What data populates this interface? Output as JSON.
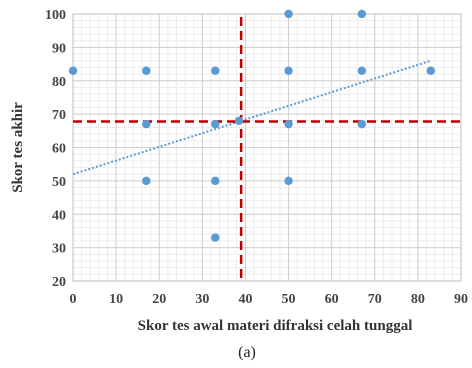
{
  "chart_data": {
    "type": "scatter",
    "xlabel": "Skor tes awal materi difraksi celah tunggal",
    "ylabel": "Skor tes akhir",
    "caption": "(a)",
    "xlim": [
      0,
      90
    ],
    "ylim": [
      20,
      100
    ],
    "x_ticks": [
      0,
      10,
      20,
      30,
      40,
      50,
      60,
      70,
      80,
      90
    ],
    "y_ticks": [
      20,
      30,
      40,
      50,
      60,
      70,
      80,
      90,
      100
    ],
    "minor_grid_step": 2,
    "grid": true,
    "points": [
      {
        "x": 0,
        "y": 83
      },
      {
        "x": 17,
        "y": 83
      },
      {
        "x": 17,
        "y": 67
      },
      {
        "x": 17,
        "y": 50
      },
      {
        "x": 33,
        "y": 83
      },
      {
        "x": 33,
        "y": 67
      },
      {
        "x": 33,
        "y": 50
      },
      {
        "x": 33,
        "y": 33
      },
      {
        "x": 38.5,
        "y": 68
      },
      {
        "x": 50,
        "y": 100
      },
      {
        "x": 50,
        "y": 83
      },
      {
        "x": 50,
        "y": 67
      },
      {
        "x": 50,
        "y": 50
      },
      {
        "x": 67,
        "y": 100
      },
      {
        "x": 67,
        "y": 83
      },
      {
        "x": 67,
        "y": 67
      },
      {
        "x": 83,
        "y": 83
      }
    ],
    "trendline": {
      "x_start": 0,
      "y_start": 52,
      "x_end": 83,
      "y_end": 86
    },
    "reference_lines": {
      "mean_x": 39,
      "mean_y": 67.8
    },
    "colors": {
      "points": "#5b9bd5",
      "trendline": "#5b9bd5",
      "reference": "#c00000",
      "grid_major": "#d0d0d0",
      "grid_minor": "#ececec"
    }
  }
}
